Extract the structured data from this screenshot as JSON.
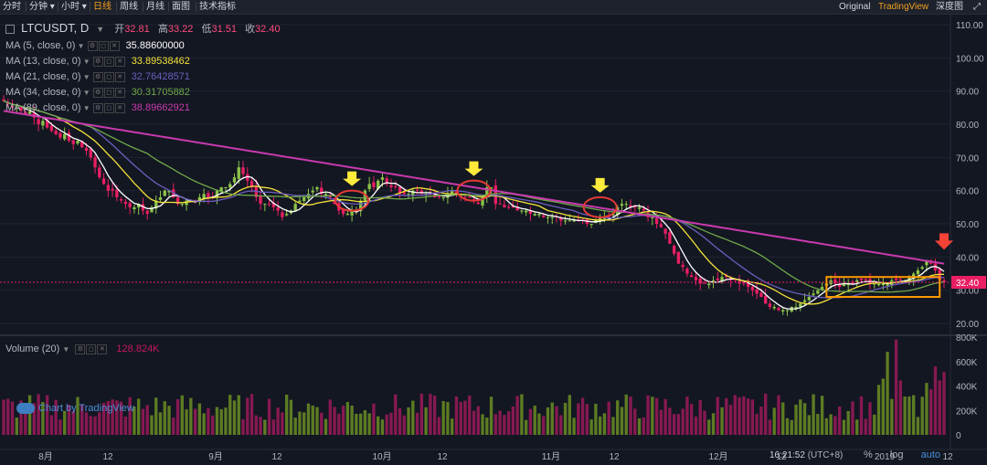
{
  "toolbar": {
    "left_buttons": [
      {
        "label": "分时",
        "active": false
      },
      {
        "label": "分钟",
        "active": false,
        "dropdown": true
      },
      {
        "label": "小时",
        "active": false,
        "dropdown": true
      },
      {
        "label": "日线",
        "active": true
      },
      {
        "label": "周线",
        "active": false
      },
      {
        "label": "月线",
        "active": false
      },
      {
        "label": "面图",
        "active": false
      },
      {
        "label": "技术指标",
        "active": false
      }
    ],
    "right_buttons": [
      {
        "label": "Original",
        "active": false
      },
      {
        "label": "TradingView",
        "active": true
      },
      {
        "label": "深度图",
        "active": false
      }
    ],
    "fullscreen_icon": "expand-icon"
  },
  "symbol": {
    "name": "LTCUSDT, D",
    "open_label": "开",
    "open": "32.81",
    "high_label": "高",
    "high": "33.22",
    "low_label": "低",
    "low": "31.51",
    "close_label": "收",
    "close": "32.40"
  },
  "indicators": [
    {
      "label": "MA (5, close, 0)",
      "value": "35.88600000",
      "color": "#ffffff"
    },
    {
      "label": "MA (13, close, 0)",
      "value": "33.89538462",
      "color": "#f5e23a"
    },
    {
      "label": "MA (21, close, 0)",
      "value": "32.76428571",
      "color": "#6b5fbf"
    },
    {
      "label": "MA (34, close, 0)",
      "value": "30.31705882",
      "color": "#6fa84a"
    },
    {
      "label": "MA (89, close, 0)",
      "value": "38.89662921",
      "color": "#c93aae"
    }
  ],
  "volume_indicator": {
    "label": "Volume (20)",
    "value": "128.824K",
    "color": "#c2185b"
  },
  "watermark": "Chart by TradingView",
  "price_axis": {
    "ticks": [
      "110.00",
      "100.00",
      "90.00",
      "80.00",
      "70.00",
      "60.00",
      "50.00",
      "40.00",
      "30.00",
      "20.00"
    ],
    "last_price": "32.40"
  },
  "volume_axis": {
    "ticks": [
      "800K",
      "600K",
      "400K",
      "200K",
      "0"
    ]
  },
  "time_axis": {
    "ticks": [
      "8月",
      "12",
      "9月",
      "12",
      "10月",
      "12",
      "11月",
      "12",
      "12月",
      "12",
      "2019",
      "12"
    ]
  },
  "footer": {
    "clock": "16:21:52",
    "timezone": "(UTC+8)",
    "percent_label": "%",
    "log_label": "log",
    "auto_label": "auto"
  },
  "colors": {
    "up": "#8bc34a",
    "down": "#e91e63",
    "annotation_arrow": "#ffeb3b",
    "annotation_arrow_down": "#f44336",
    "circle": "#e53935",
    "box": "#ff9800"
  },
  "chart_data": {
    "type": "candlestick",
    "symbol": "LTCUSDT",
    "interval": "D",
    "ylim": [
      17,
      113
    ],
    "y_scale": "linear",
    "volume_ylim": [
      0,
      800000
    ],
    "close": [
      87,
      86,
      85,
      85,
      84,
      83,
      84,
      82,
      80,
      81,
      79,
      78,
      77,
      76,
      77,
      75,
      74,
      75,
      73,
      72,
      70,
      67,
      64,
      62,
      60,
      60,
      58,
      57,
      56,
      55,
      55,
      56,
      54,
      53,
      55,
      57,
      58,
      60,
      60,
      58,
      56,
      56,
      57,
      57,
      57,
      58,
      59,
      58,
      58,
      60,
      61,
      61,
      62,
      64,
      67,
      65,
      63,
      61,
      58,
      56,
      56,
      56,
      55,
      54,
      52,
      53,
      54,
      56,
      57,
      58,
      59,
      60,
      61,
      59,
      59,
      58,
      56,
      54,
      53,
      53,
      54,
      54,
      57,
      60,
      62,
      61,
      63,
      64,
      62,
      61,
      61,
      59,
      59,
      59,
      60,
      60,
      59,
      59,
      59,
      58,
      58,
      58,
      59,
      60,
      59,
      58,
      58,
      58,
      57,
      56,
      58,
      61,
      61,
      56,
      56,
      55,
      55,
      55,
      54,
      54,
      54,
      53,
      53,
      53,
      52,
      52,
      52,
      52,
      51,
      51,
      51,
      51,
      51,
      51,
      50,
      50,
      51,
      52,
      52,
      52,
      53,
      55,
      56,
      56,
      55,
      55,
      55,
      54,
      52,
      52,
      50,
      49,
      47,
      44,
      41,
      38,
      37,
      35,
      34,
      33,
      32,
      32,
      32,
      33,
      33,
      34,
      34,
      33,
      33,
      32,
      32,
      31,
      30,
      29,
      28,
      26,
      25,
      25,
      24,
      24,
      24,
      25,
      25,
      26,
      27,
      28,
      29,
      30,
      31,
      32,
      33,
      32,
      31,
      32,
      32,
      32,
      33,
      33,
      33,
      32,
      32,
      32,
      32,
      32,
      33,
      33,
      33,
      33,
      34,
      35,
      36,
      37,
      39,
      38,
      36,
      33,
      32.4
    ],
    "markers": [
      {
        "type": "circle_arrow_down",
        "index": 80
      },
      {
        "type": "circle_arrow_down",
        "index": 108
      },
      {
        "type": "circle_arrow_down",
        "index": 137
      },
      {
        "type": "box",
        "index_range": [
          189,
          215
        ],
        "price_range": [
          28,
          34
        ]
      },
      {
        "type": "arrow_down_red",
        "index": 216
      }
    ]
  }
}
